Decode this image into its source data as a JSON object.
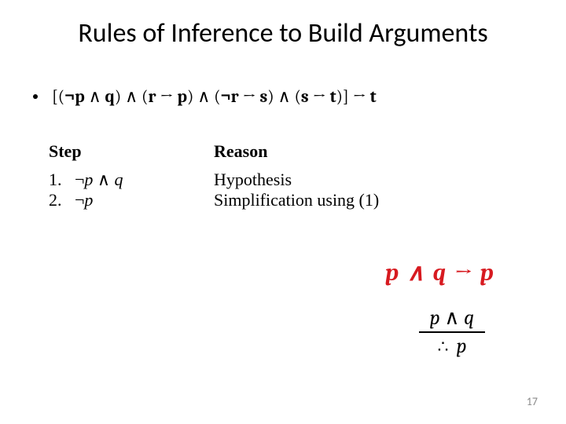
{
  "title": "Rules of Inference to Build Arguments",
  "theorem": {
    "lbracket": "[(",
    "neg1": "¬",
    "p1": "p",
    "and1": " ∧ ",
    "q1": "q",
    "close1": ") ∧ (",
    "r1": "r",
    "arrow1": " → ",
    "p2": "p",
    "close2": ") ∧ (",
    "neg2": "¬",
    "r2": "r",
    "arrow2": " → ",
    "s1": "s",
    "close3": ") ∧ (",
    "s2": "s",
    "arrow3": " → ",
    "t1": "t",
    "close4": ")] → ",
    "t2": "t"
  },
  "proof": {
    "step_header": "Step",
    "reason_header": "Reason",
    "rows": [
      {
        "num": "1.",
        "expr_neg": "¬",
        "expr_p": "p",
        "expr_and": " ∧ ",
        "expr_q": "q",
        "reason": "Hypothesis"
      },
      {
        "num": "2.",
        "expr_neg": "¬",
        "expr_p": "p",
        "expr_and": "",
        "expr_q": "",
        "reason": "Simplification using (1)"
      }
    ]
  },
  "red_rule": {
    "p": "p",
    "and": " ∧ ",
    "q": "q",
    "arrow": "  →  ",
    "p2": "p"
  },
  "inference": {
    "top_p": "p",
    "top_and": " ∧ ",
    "top_q": "q",
    "therefore": "∴",
    "bot_p": "p"
  },
  "page_number": "17",
  "colors": {
    "red": "#d71a20",
    "page_num": "#8a8a8a",
    "text": "#000000",
    "bg": "#ffffff"
  }
}
